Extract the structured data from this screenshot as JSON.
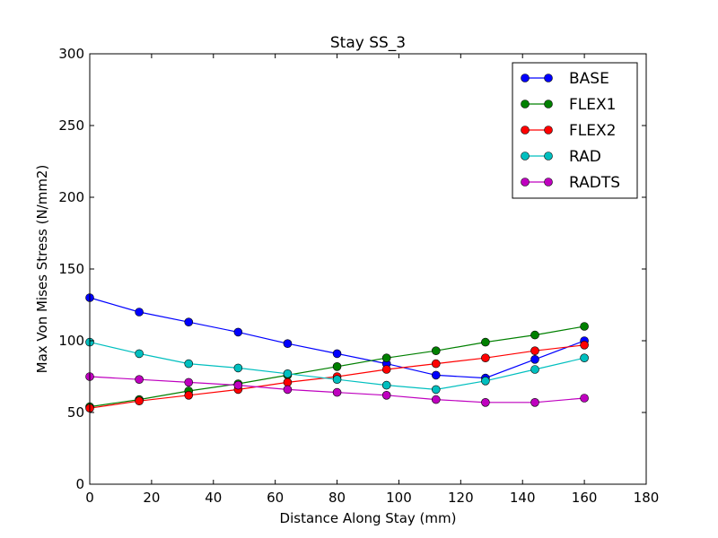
{
  "chart_data": {
    "type": "line",
    "title": "Stay SS_3",
    "xlabel": "Distance Along Stay (mm)",
    "ylabel": "Max Von Mises Stress (N/mm2)",
    "xlim": [
      0,
      180
    ],
    "ylim": [
      0,
      300
    ],
    "xticks": [
      0,
      20,
      40,
      60,
      80,
      100,
      120,
      140,
      160,
      180
    ],
    "yticks": [
      0,
      50,
      100,
      150,
      200,
      250,
      300
    ],
    "grid": false,
    "legend_position": "top-right",
    "x": [
      0,
      16,
      32,
      48,
      64,
      80,
      96,
      112,
      128,
      144,
      160
    ],
    "series": [
      {
        "name": "BASE",
        "color": "#0000ff",
        "values": [
          130,
          120,
          113,
          106,
          98,
          91,
          84,
          76,
          74,
          87,
          100
        ]
      },
      {
        "name": "FLEX1",
        "color": "#008000",
        "values": [
          54,
          59,
          65,
          70,
          76,
          82,
          88,
          93,
          99,
          104,
          110
        ]
      },
      {
        "name": "FLEX2",
        "color": "#ff0000",
        "values": [
          53,
          58,
          62,
          66,
          71,
          75,
          80,
          84,
          88,
          93,
          97
        ]
      },
      {
        "name": "RAD",
        "color": "#00bfbf",
        "values": [
          99,
          91,
          84,
          81,
          77,
          73,
          69,
          66,
          72,
          80,
          88
        ]
      },
      {
        "name": "RADTS",
        "color": "#bf00bf",
        "values": [
          75,
          73,
          71,
          69,
          66,
          64,
          62,
          59,
          57,
          57,
          60
        ]
      }
    ]
  }
}
